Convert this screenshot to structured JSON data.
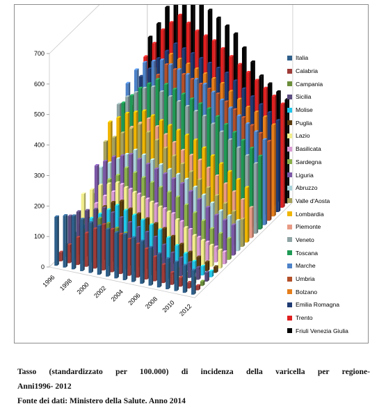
{
  "caption": {
    "title_line1": "Tasso (standardizzato per 100.000) di incidenza della varicella per regione-",
    "title_line2": "Anni1996- 2012",
    "source": "Fonte dei dati: Ministero della Salute. Anno 2014"
  },
  "chart_data": {
    "type": "bar",
    "subtype": "3d-clustered-columns",
    "ylim": [
      0,
      700
    ],
    "yticks": [
      0,
      100,
      200,
      300,
      400,
      500,
      600,
      700
    ],
    "x_tick_labels": [
      "1996",
      "1998",
      "2000",
      "2002",
      "2004",
      "2006",
      "2008",
      "2010",
      "2012"
    ],
    "categories": [
      "1996",
      "1997",
      "1998",
      "1999",
      "2000",
      "2001",
      "2002",
      "2003",
      "2004",
      "2005",
      "2006",
      "2007",
      "2008",
      "2009",
      "2010",
      "2011",
      "2012"
    ],
    "legend_position": "right",
    "grid": false,
    "series": [
      {
        "name": "Italia",
        "color": "#2E5F8A",
        "values": [
          160,
          170,
          175,
          170,
          165,
          160,
          155,
          150,
          150,
          145,
          140,
          125,
          110,
          100,
          95,
          90,
          80
        ]
      },
      {
        "name": "Calabria",
        "color": "#9E3B37",
        "values": [
          30,
          60,
          90,
          110,
          130,
          150,
          140,
          130,
          120,
          110,
          100,
          80,
          60,
          40,
          30,
          20,
          15
        ]
      },
      {
        "name": "Campania",
        "color": "#6B8E3A",
        "values": [
          40,
          70,
          100,
          120,
          150,
          140,
          130,
          120,
          100,
          90,
          80,
          60,
          50,
          40,
          30,
          20,
          15
        ]
      },
      {
        "name": "Sicilia",
        "color": "#5A4A7E",
        "values": [
          120,
          140,
          150,
          160,
          170,
          160,
          150,
          140,
          130,
          120,
          110,
          90,
          70,
          60,
          50,
          40,
          30
        ]
      },
      {
        "name": "Molise",
        "color": "#1EC6EA",
        "values": [
          50,
          80,
          110,
          130,
          150,
          170,
          160,
          150,
          140,
          130,
          120,
          100,
          80,
          60,
          40,
          30,
          20
        ]
      },
      {
        "name": "Puglia",
        "color": "#5A3A0C",
        "values": [
          60,
          90,
          120,
          140,
          160,
          170,
          150,
          140,
          130,
          120,
          110,
          90,
          70,
          50,
          40,
          30,
          20
        ]
      },
      {
        "name": "Lazio",
        "color": "#F2EE8C",
        "values": [
          150,
          170,
          190,
          200,
          210,
          200,
          190,
          180,
          170,
          160,
          150,
          130,
          110,
          90,
          80,
          70,
          60
        ]
      },
      {
        "name": "Basilicata",
        "color": "#D99AD4",
        "values": [
          80,
          110,
          140,
          160,
          190,
          180,
          170,
          160,
          150,
          140,
          130,
          110,
          90,
          70,
          60,
          50,
          40
        ]
      },
      {
        "name": "Sardegna",
        "color": "#8BB04A",
        "values": [
          120,
          150,
          180,
          200,
          230,
          220,
          210,
          200,
          190,
          180,
          170,
          150,
          130,
          110,
          90,
          80,
          70
        ]
      },
      {
        "name": "Liguria",
        "color": "#7B57A6",
        "values": [
          200,
          220,
          240,
          250,
          260,
          250,
          240,
          230,
          220,
          210,
          200,
          180,
          160,
          140,
          120,
          110,
          100
        ]
      },
      {
        "name": "Abruzzo",
        "color": "#A9D2DA",
        "values": [
          180,
          200,
          220,
          240,
          260,
          250,
          240,
          230,
          220,
          210,
          200,
          180,
          160,
          140,
          120,
          110,
          100
        ]
      },
      {
        "name": "Valle d'Aosta",
        "color": "#A6A15A",
        "values": [
          250,
          270,
          290,
          310,
          330,
          310,
          290,
          270,
          250,
          230,
          210,
          190,
          170,
          150,
          130,
          110,
          90
        ]
      },
      {
        "name": "Lombardia",
        "color": "#F0B500",
        "values": [
          300,
          320,
          340,
          350,
          360,
          350,
          340,
          330,
          320,
          310,
          300,
          280,
          260,
          240,
          220,
          200,
          180
        ]
      },
      {
        "name": "Piemonte",
        "color": "#E89A84",
        "values": [
          220,
          250,
          280,
          300,
          320,
          300,
          280,
          260,
          240,
          230,
          220,
          200,
          180,
          160,
          140,
          120,
          100
        ]
      },
      {
        "name": "Veneto",
        "color": "#8FA4A4",
        "values": [
          330,
          360,
          380,
          400,
          410,
          400,
          390,
          380,
          370,
          360,
          350,
          330,
          310,
          290,
          270,
          250,
          230
        ]
      },
      {
        "name": "Toscana",
        "color": "#1E9A55",
        "values": [
          320,
          350,
          380,
          400,
          420,
          410,
          400,
          390,
          380,
          370,
          360,
          340,
          320,
          300,
          280,
          260,
          240
        ]
      },
      {
        "name": "Marche",
        "color": "#4D82C8",
        "values": [
          370,
          420,
          450,
          460,
          470,
          460,
          450,
          440,
          430,
          420,
          400,
          380,
          360,
          340,
          320,
          300,
          280
        ]
      },
      {
        "name": "Umbria",
        "color": "#B35028",
        "values": [
          280,
          320,
          360,
          400,
          440,
          430,
          420,
          410,
          400,
          390,
          380,
          360,
          340,
          320,
          300,
          280,
          260
        ]
      },
      {
        "name": "Bolzano",
        "color": "#E57E1A",
        "values": [
          300,
          350,
          400,
          430,
          460,
          450,
          440,
          430,
          420,
          410,
          400,
          380,
          360,
          340,
          330,
          320,
          300
        ]
      },
      {
        "name": "Emilia Romagna",
        "color": "#1F3B73",
        "values": [
          350,
          380,
          420,
          450,
          480,
          470,
          460,
          450,
          440,
          430,
          420,
          400,
          380,
          360,
          340,
          320,
          300
        ]
      },
      {
        "name": "Trento",
        "color": "#E01F1F",
        "values": [
          400,
          450,
          500,
          530,
          560,
          540,
          520,
          510,
          500,
          480,
          460,
          440,
          420,
          400,
          380,
          360,
          340
        ]
      },
      {
        "name": "Friuli Venezia Giulia",
        "color": "#000000",
        "values": [
          450,
          500,
          560,
          620,
          650,
          620,
          600,
          580,
          560,
          540,
          520,
          480,
          440,
          400,
          380,
          360,
          340
        ]
      }
    ]
  }
}
